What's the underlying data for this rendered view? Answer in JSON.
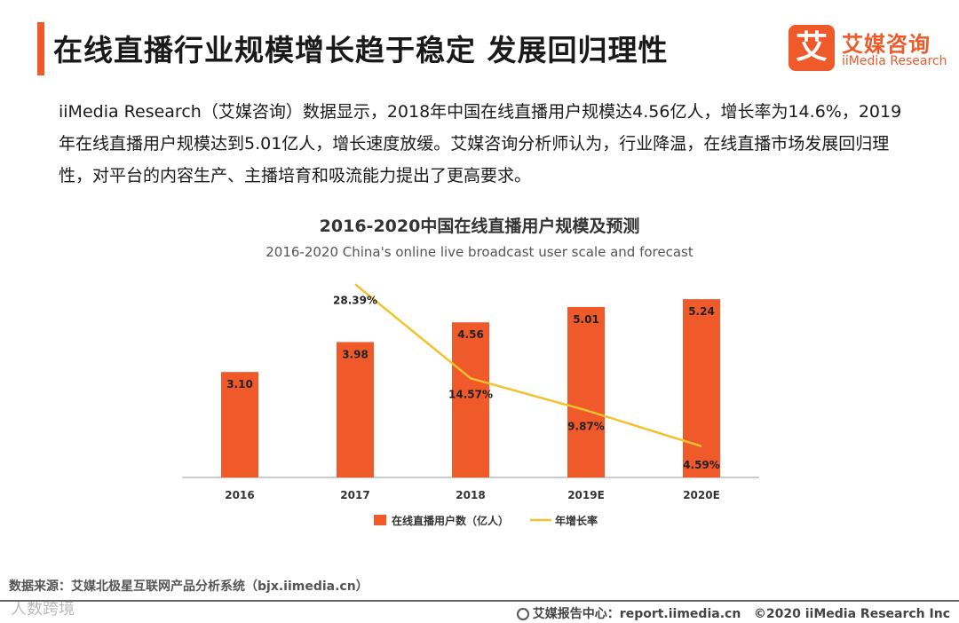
{
  "header": {
    "title": "在线直播行业规模增长趋于稳定 发展回归理性",
    "logo_mark": "艾",
    "logo_cn": "艾媒咨询",
    "logo_en": "iiMedia Research"
  },
  "intro_text": "iiMedia Research（艾媒咨询）数据显示，2018年中国在线直播用户规模达4.56亿人，增长率为14.6%，2019年在线直播用户规模达到5.01亿人，增长速度放缓。艾媒咨询分析师认为，行业降温，在线直播市场发展回归理性，对平台的内容生产、主播培育和吸流能力提出了更高要求。",
  "chart_data": {
    "type": "bar",
    "title": "2016-2020中国在线直播用户规模及预测",
    "subtitle": "2016-2020 China's online live broadcast user scale and forecast",
    "categories": [
      "2016",
      "2017",
      "2018",
      "2019E",
      "2020E"
    ],
    "series": [
      {
        "name": "在线直播用户数（亿人）",
        "type": "bar",
        "values": [
          3.1,
          3.98,
          4.56,
          5.01,
          5.24
        ],
        "labels": [
          "3.10",
          "3.98",
          "4.56",
          "5.01",
          "5.24"
        ],
        "color": "#f0592a",
        "axis": "left"
      },
      {
        "name": "年增长率",
        "type": "line",
        "values": [
          null,
          28.39,
          14.57,
          9.87,
          4.59
        ],
        "labels": [
          "",
          "28.39%",
          "14.57%",
          "9.87%",
          "4.59%"
        ],
        "color": "#f2c12e",
        "axis": "right"
      }
    ],
    "ylim": [
      0,
      6
    ],
    "y2lim": [
      0,
      30
    ],
    "legend_position": "bottom"
  },
  "source_text": "数据来源：艾媒北极星互联网产品分析系统（bjx.iimedia.cn）",
  "watermark": "人数跨境",
  "footer": {
    "report_center": "艾媒报告中心：report.iimedia.cn",
    "copyright": "©2020 iiMedia Research Inc"
  }
}
